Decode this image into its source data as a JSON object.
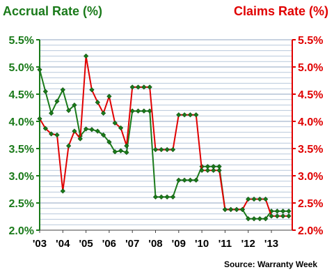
{
  "chart_data": {
    "type": "line",
    "left_axis_title": "Accrual Rate (%)",
    "right_axis_title": "Claims Rate (%)",
    "source": "Source: Warranty Week",
    "x_tick_labels": [
      "'03",
      "'04",
      "'05",
      "'06",
      "'07",
      "'08",
      "'09",
      "'10",
      "'11",
      "'12",
      "'13"
    ],
    "y_tick_labels": [
      "2.0%",
      "2.5%",
      "3.0%",
      "3.5%",
      "4.0%",
      "4.5%",
      "5.0%",
      "5.5%"
    ],
    "ylim": [
      2.0,
      5.5
    ],
    "grid": true,
    "left_axis_color": "#1a7a1a",
    "right_axis_color": "#e00000",
    "grid_color": "#b8c8dc",
    "series": [
      {
        "axis": "left",
        "color": "#1a7a1a",
        "marker_color": "#1a7a1a",
        "x": [
          2003.0,
          2003.25,
          2003.5,
          2003.75,
          2004.0,
          2004.25,
          2004.5,
          2004.75,
          2005.0,
          2005.25,
          2005.5,
          2005.75,
          2006.0,
          2006.25,
          2006.5,
          2006.75,
          2007.0,
          2007.25,
          2007.5,
          2007.75,
          2008.0,
          2008.25,
          2008.5,
          2008.75,
          2009.0,
          2009.25,
          2009.5,
          2009.75,
          2010.0,
          2010.25,
          2010.5,
          2010.75,
          2011.0,
          2011.25,
          2011.5,
          2011.75,
          2012.0,
          2012.25,
          2012.5,
          2012.75,
          2013.0,
          2013.25,
          2013.5,
          2013.75
        ],
        "values": [
          4.95,
          4.55,
          4.15,
          4.37,
          4.58,
          4.2,
          4.3,
          3.73,
          3.86,
          3.85,
          3.82,
          3.75,
          3.62,
          3.44,
          3.46,
          3.43,
          4.19,
          4.19,
          4.19,
          4.19,
          2.61,
          2.61,
          2.61,
          2.61,
          2.92,
          2.92,
          2.92,
          2.92,
          3.17,
          3.17,
          3.17,
          3.17,
          2.38,
          2.38,
          2.38,
          2.38,
          2.21,
          2.21,
          2.21,
          2.21,
          2.35,
          2.35,
          2.35,
          2.35
        ]
      },
      {
        "axis": "right",
        "color": "#e00000",
        "marker_color": "#1a7a1a",
        "x": [
          2003.0,
          2003.25,
          2003.5,
          2003.75,
          2004.0,
          2004.25,
          2004.5,
          2004.75,
          2005.0,
          2005.25,
          2005.5,
          2005.75,
          2006.0,
          2006.25,
          2006.5,
          2006.75,
          2007.0,
          2007.25,
          2007.5,
          2007.75,
          2008.0,
          2008.25,
          2008.5,
          2008.75,
          2009.0,
          2009.25,
          2009.5,
          2009.75,
          2010.0,
          2010.25,
          2010.5,
          2010.75,
          2011.0,
          2011.25,
          2011.5,
          2011.75,
          2012.0,
          2012.25,
          2012.5,
          2012.75,
          2013.0,
          2013.25,
          2013.5,
          2013.75
        ],
        "values": [
          4.05,
          3.87,
          3.77,
          3.75,
          2.72,
          3.55,
          3.82,
          3.68,
          5.2,
          4.58,
          4.35,
          4.15,
          4.46,
          3.97,
          3.88,
          3.55,
          4.63,
          4.63,
          4.63,
          4.63,
          3.48,
          3.48,
          3.48,
          3.48,
          4.12,
          4.12,
          4.12,
          4.12,
          3.1,
          3.1,
          3.1,
          3.1,
          2.38,
          2.38,
          2.38,
          2.38,
          2.57,
          2.57,
          2.57,
          2.57,
          2.26,
          2.26,
          2.26,
          2.26
        ]
      }
    ]
  }
}
